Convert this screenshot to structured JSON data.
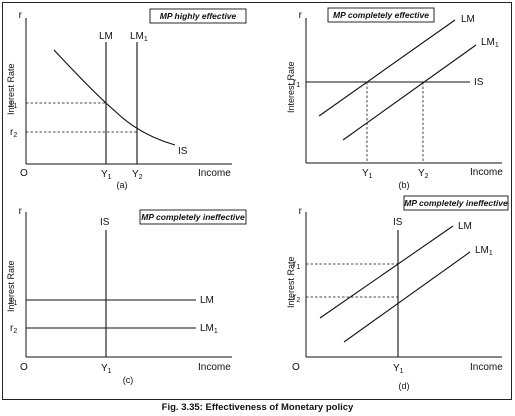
{
  "caption": "Fig. 3.35: Effectiveness of Monetary policy",
  "panels": {
    "a": {
      "title": "MP highly effective",
      "label": "(a)",
      "origin": "O",
      "y_axis": "r",
      "y_title": "Interest Rate",
      "x_title": "Income",
      "r1": "r",
      "r1_sub": "1",
      "r2": "r",
      "r2_sub": "2",
      "y1": "Y",
      "y1_sub": "1",
      "y2": "Y",
      "y2_sub": "2",
      "lm": "LM",
      "lm1": "LM",
      "lm1_sub": "1",
      "is": "IS"
    },
    "b": {
      "title": "MP completely effective",
      "label": "(b)",
      "y_axis": "r",
      "y_title": "Interest Rate",
      "x_title": "Income",
      "r1": "r",
      "r1_sub": "1",
      "y1": "Y",
      "y1_sub": "1",
      "y2": "Y",
      "y2_sub": "2",
      "lm": "LM",
      "lm1": "LM",
      "lm1_sub": "1",
      "is": "IS"
    },
    "c": {
      "title": "MP completely ineffective",
      "label": "(c)",
      "origin": "O",
      "y_axis": "r",
      "y_title": "Interest Rate",
      "x_title": "Income",
      "r1": "r",
      "r1_sub": "1",
      "r2": "r",
      "r2_sub": "2",
      "y1": "Y",
      "y1_sub": "1",
      "lm": "LM",
      "lm1": "LM",
      "lm1_sub": "1",
      "is": "IS"
    },
    "d": {
      "title": "MP completely ineffective",
      "label": "(d)",
      "origin": "O",
      "y_axis": "r",
      "y_title": "Interest Rate",
      "x_title": "Income",
      "r1": "r",
      "r1_sub": "1",
      "r2": "r",
      "r2_sub": "2",
      "y1": "Y",
      "y1_sub": "1",
      "lm": "LM",
      "lm1": "LM",
      "lm1_sub": "1",
      "is": "IS"
    }
  }
}
